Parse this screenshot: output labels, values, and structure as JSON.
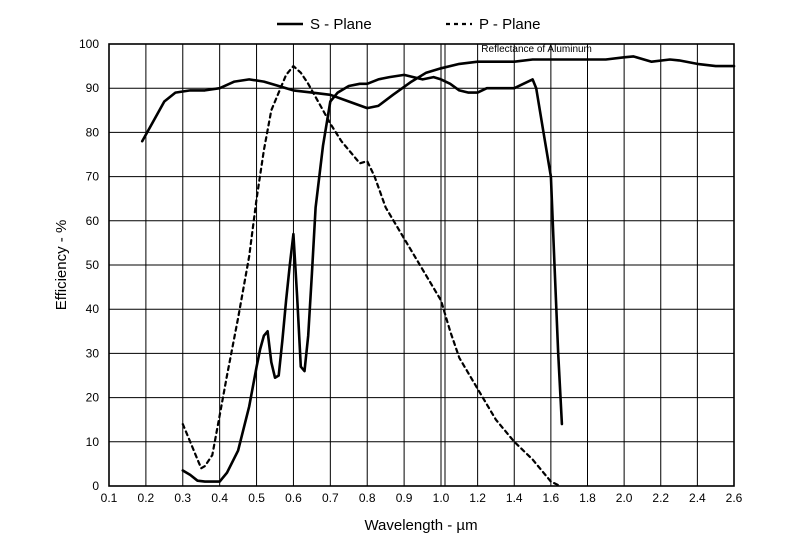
{
  "chart_data": {
    "type": "line",
    "xlabel": "Wavelength - µm",
    "ylabel": "Efficiency - %",
    "xlim": [
      0.1,
      2.6
    ],
    "ylim": [
      0,
      100
    ],
    "x_segments": [
      {
        "from": 0.1,
        "to": 1.0,
        "ticks": [
          "0.1",
          "0.2",
          "0.3",
          "0.4",
          "0.5",
          "0.6",
          "0.7",
          "0.8",
          "0.9",
          "1.0"
        ]
      },
      {
        "from": 1.0,
        "to": 2.6,
        "ticks": [
          "1.2",
          "1.4",
          "1.6",
          "1.8",
          "2.0",
          "2.2",
          "2.4",
          "2.6"
        ]
      }
    ],
    "y_ticks": [
      "0",
      "10",
      "20",
      "30",
      "40",
      "50",
      "60",
      "70",
      "80",
      "90",
      "100"
    ],
    "grid": true,
    "legend": {
      "placement": "top-center"
    },
    "series": [
      {
        "name": "S - Plane",
        "style": "solid",
        "points": [
          [
            0.3,
            3.5
          ],
          [
            0.32,
            2.5
          ],
          [
            0.34,
            1.2
          ],
          [
            0.36,
            1.0
          ],
          [
            0.38,
            1.0
          ],
          [
            0.4,
            1.0
          ],
          [
            0.42,
            3
          ],
          [
            0.45,
            8
          ],
          [
            0.48,
            18
          ],
          [
            0.5,
            27
          ],
          [
            0.51,
            31
          ],
          [
            0.52,
            34
          ],
          [
            0.53,
            35
          ],
          [
            0.54,
            28
          ],
          [
            0.55,
            24.5
          ],
          [
            0.56,
            25
          ],
          [
            0.57,
            33
          ],
          [
            0.58,
            42
          ],
          [
            0.59,
            50
          ],
          [
            0.6,
            57
          ],
          [
            0.61,
            43
          ],
          [
            0.62,
            27
          ],
          [
            0.63,
            26
          ],
          [
            0.64,
            34
          ],
          [
            0.65,
            48
          ],
          [
            0.66,
            63
          ],
          [
            0.68,
            77
          ],
          [
            0.7,
            87
          ],
          [
            0.72,
            89
          ],
          [
            0.75,
            90.5
          ],
          [
            0.78,
            91
          ],
          [
            0.8,
            91
          ],
          [
            0.83,
            92
          ],
          [
            0.86,
            92.5
          ],
          [
            0.9,
            93
          ],
          [
            0.95,
            92
          ],
          [
            0.98,
            92.5
          ],
          [
            1.0,
            92
          ],
          [
            1.05,
            91
          ],
          [
            1.1,
            89.5
          ],
          [
            1.15,
            89
          ],
          [
            1.2,
            89
          ],
          [
            1.25,
            90
          ],
          [
            1.3,
            90
          ],
          [
            1.4,
            90
          ],
          [
            1.45,
            91
          ],
          [
            1.5,
            92
          ],
          [
            1.52,
            90
          ],
          [
            1.56,
            80
          ],
          [
            1.6,
            70
          ],
          [
            1.62,
            50
          ],
          [
            1.64,
            30
          ],
          [
            1.66,
            14
          ]
        ]
      },
      {
        "name": "P - Plane",
        "style": "dashed",
        "points": [
          [
            0.3,
            14
          ],
          [
            0.32,
            10
          ],
          [
            0.34,
            6
          ],
          [
            0.35,
            4
          ],
          [
            0.36,
            4.5
          ],
          [
            0.38,
            7
          ],
          [
            0.4,
            16
          ],
          [
            0.42,
            25
          ],
          [
            0.45,
            38
          ],
          [
            0.48,
            52
          ],
          [
            0.5,
            65
          ],
          [
            0.52,
            76
          ],
          [
            0.54,
            85
          ],
          [
            0.56,
            89
          ],
          [
            0.58,
            93
          ],
          [
            0.6,
            95
          ],
          [
            0.62,
            93.5
          ],
          [
            0.64,
            91
          ],
          [
            0.66,
            88
          ],
          [
            0.68,
            85
          ],
          [
            0.7,
            82
          ],
          [
            0.73,
            78
          ],
          [
            0.76,
            75
          ],
          [
            0.78,
            73
          ],
          [
            0.8,
            73.5
          ],
          [
            0.82,
            70
          ],
          [
            0.85,
            63
          ],
          [
            0.9,
            56
          ],
          [
            1.0,
            42
          ],
          [
            1.05,
            35
          ],
          [
            1.1,
            29
          ],
          [
            1.2,
            22
          ],
          [
            1.3,
            15
          ],
          [
            1.4,
            10
          ],
          [
            1.5,
            6
          ],
          [
            1.6,
            1
          ],
          [
            1.65,
            0
          ]
        ]
      },
      {
        "name": "Reflectance of Aluminum",
        "style": "solid",
        "points": [
          [
            0.19,
            78
          ],
          [
            0.21,
            81
          ],
          [
            0.25,
            87
          ],
          [
            0.28,
            89
          ],
          [
            0.32,
            89.5
          ],
          [
            0.36,
            89.5
          ],
          [
            0.4,
            90
          ],
          [
            0.44,
            91.5
          ],
          [
            0.48,
            92
          ],
          [
            0.52,
            91.5
          ],
          [
            0.56,
            90.5
          ],
          [
            0.6,
            89.5
          ],
          [
            0.65,
            89
          ],
          [
            0.7,
            88.5
          ],
          [
            0.75,
            87
          ],
          [
            0.8,
            85.5
          ],
          [
            0.83,
            86
          ],
          [
            0.87,
            88.5
          ],
          [
            0.92,
            91.5
          ],
          [
            0.96,
            93.5
          ],
          [
            1.0,
            94.5
          ],
          [
            1.1,
            95.5
          ],
          [
            1.2,
            96
          ],
          [
            1.4,
            96
          ],
          [
            1.5,
            96.5
          ],
          [
            1.6,
            96.5
          ],
          [
            1.8,
            96.5
          ],
          [
            1.9,
            96.5
          ],
          [
            2.0,
            97
          ],
          [
            2.05,
            97.2
          ],
          [
            2.15,
            96
          ],
          [
            2.25,
            96.5
          ],
          [
            2.3,
            96.3
          ],
          [
            2.4,
            95.5
          ],
          [
            2.5,
            95
          ],
          [
            2.6,
            95
          ]
        ]
      }
    ],
    "legend_entries": [
      "S - Plane",
      "P - Plane"
    ],
    "annotations": [
      {
        "text": "Reflectance of Aluminum",
        "x": 1.22,
        "y": 98.2
      }
    ]
  }
}
